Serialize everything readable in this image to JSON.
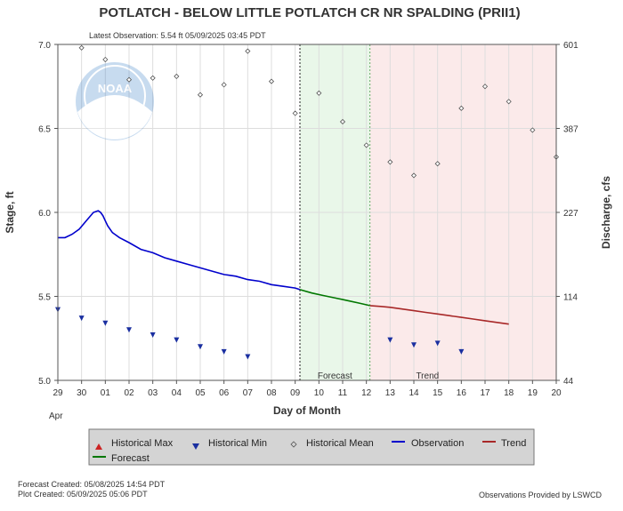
{
  "header": {
    "title": "POTLATCH - BELOW LITTLE POTLATCH CR NR SPALDING  (PRII1)",
    "latest_observation": "Latest Observation: 5.54 ft 05/09/2025 03:45 PDT"
  },
  "footer": {
    "forecast_created": "Forecast Created: 05/08/2025 14:54 PDT",
    "plot_created": "Plot Created: 05/09/2025 05:06 PDT",
    "provider": "Observations Provided by LSWCD"
  },
  "logo": {
    "text": "NOAA"
  },
  "colors": {
    "observation": "#0000cc",
    "forecast": "#007700",
    "trend": "#a82828",
    "historical_max": "#cc2222",
    "historical_min": "#1a2fa0",
    "historical_mean": "#555555",
    "forecast_band": "#e9f7e9",
    "trend_band": "#fbeaea"
  },
  "chart_data": {
    "type": "line",
    "xlabel": "Day of Month",
    "x_month_label": "Apr",
    "ylabel_left": "Stage, ft",
    "ylabel_right": "Discharge, cfs",
    "x_range_days": [
      0,
      21
    ],
    "x_tick_labels": [
      "29",
      "30",
      "01",
      "02",
      "03",
      "04",
      "05",
      "06",
      "07",
      "08",
      "09",
      "10",
      "11",
      "12",
      "13",
      "14",
      "15",
      "16",
      "17",
      "18",
      "19",
      "20"
    ],
    "ylim_left": [
      5.0,
      7.0
    ],
    "y_ticks_left": [
      "5.0",
      "5.5",
      "6.0",
      "6.5",
      "7.0"
    ],
    "y_ticks_right": [
      "44",
      "114",
      "227",
      "387",
      "601"
    ],
    "latest_observation_day": 10.2,
    "zones": [
      {
        "name": "Forecast",
        "start_day": 10.2,
        "end_day": 13.15
      },
      {
        "name": "Trend",
        "start_day": 13.15,
        "end_day": 21
      }
    ],
    "series": [
      {
        "name": "Observation",
        "x": [
          0,
          0.3,
          0.6,
          0.9,
          1.2,
          1.5,
          1.7,
          1.8,
          1.9,
          2.0,
          2.1,
          2.3,
          2.6,
          3.0,
          3.5,
          4.0,
          4.5,
          5.0,
          5.5,
          6.0,
          6.5,
          7.0,
          7.5,
          8.0,
          8.5,
          9.0,
          9.5,
          10.0,
          10.2
        ],
        "y": [
          5.85,
          5.85,
          5.87,
          5.9,
          5.95,
          6.0,
          6.01,
          6.0,
          5.98,
          5.95,
          5.92,
          5.88,
          5.85,
          5.82,
          5.78,
          5.76,
          5.73,
          5.71,
          5.69,
          5.67,
          5.65,
          5.63,
          5.62,
          5.6,
          5.59,
          5.57,
          5.56,
          5.55,
          5.54
        ]
      },
      {
        "name": "Forecast",
        "x": [
          10.2,
          10.7,
          11.2,
          11.7,
          12.2,
          12.7,
          13.15
        ],
        "y": [
          5.54,
          5.52,
          5.505,
          5.49,
          5.475,
          5.46,
          5.445
        ]
      },
      {
        "name": "Trend",
        "x": [
          13.15,
          13.6,
          14.0,
          14.5,
          15.0,
          15.5,
          16.0,
          16.5,
          17.0,
          17.5,
          18.0,
          18.5,
          19.0
        ],
        "y": [
          5.445,
          5.44,
          5.435,
          5.425,
          5.415,
          5.405,
          5.395,
          5.385,
          5.375,
          5.365,
          5.355,
          5.345,
          5.335
        ]
      },
      {
        "name": "Historical Min",
        "x": [
          0,
          1,
          2,
          3,
          4,
          5,
          6,
          7,
          8,
          14,
          15,
          16,
          17
        ],
        "y": [
          5.42,
          5.37,
          5.34,
          5.3,
          5.27,
          5.24,
          5.2,
          5.17,
          5.14,
          5.24,
          5.21,
          5.22,
          5.17
        ]
      },
      {
        "name": "Historical Mean",
        "x": [
          1,
          2,
          3,
          4,
          5,
          6,
          7,
          8,
          9,
          10,
          11,
          12,
          13,
          14,
          15,
          16,
          17,
          18,
          19,
          20,
          21
        ],
        "y": [
          6.98,
          6.91,
          6.79,
          6.8,
          6.81,
          6.7,
          6.76,
          6.96,
          6.78,
          6.59,
          6.71,
          6.54,
          6.4,
          6.3,
          6.22,
          6.29,
          6.62,
          6.75,
          6.66,
          6.49,
          6.33
        ]
      }
    ]
  },
  "legend": {
    "items": [
      {
        "key": "historical_max",
        "label": "Historical Max"
      },
      {
        "key": "historical_min",
        "label": "Historical Min"
      },
      {
        "key": "historical_mean",
        "label": "Historical Mean"
      },
      {
        "key": "observation",
        "label": "Observation"
      },
      {
        "key": "trend",
        "label": "Trend"
      },
      {
        "key": "forecast",
        "label": "Forecast"
      }
    ]
  }
}
